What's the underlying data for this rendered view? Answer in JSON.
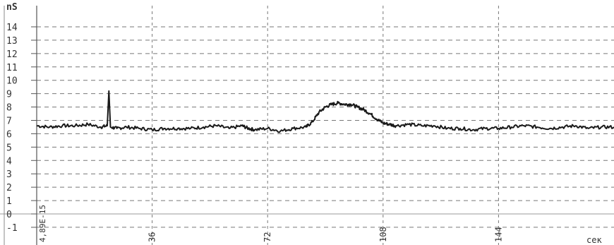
{
  "chart_data": {
    "type": "line",
    "title": "",
    "xlabel": "",
    "ylabel": "",
    "y_unit_label": "nS",
    "x_unit_label": "сек",
    "annotation": "4,89E-15",
    "xlim": [
      0,
      180
    ],
    "ylim": [
      -2,
      15
    ],
    "y_ticks": [
      "-1",
      "0",
      "1",
      "2",
      "3",
      "4",
      "5",
      "6",
      "7",
      "8",
      "9",
      "10",
      "11",
      "12",
      "13",
      "14"
    ],
    "x_ticks": [
      "36",
      "72",
      "108",
      "144"
    ],
    "x_tick_values": [
      36,
      72,
      108,
      144
    ],
    "grid": true,
    "series": [
      {
        "values_x": [
          0,
          4,
          8,
          12,
          16,
          20,
          22,
          22.5,
          23,
          25,
          28,
          32,
          36,
          40,
          44,
          48,
          52,
          56,
          60,
          64,
          66,
          68,
          72,
          76,
          80,
          84,
          86,
          88,
          90,
          92,
          94,
          96,
          98,
          100,
          102,
          104,
          106,
          108,
          110,
          112,
          116,
          120,
          124,
          128,
          132,
          136,
          140,
          144,
          148,
          152,
          156,
          160,
          164,
          168,
          172,
          176,
          180
        ],
        "values_y": [
          6.6,
          6.5,
          6.6,
          6.6,
          6.7,
          6.5,
          6.6,
          9.2,
          6.5,
          6.4,
          6.5,
          6.4,
          6.3,
          6.4,
          6.4,
          6.4,
          6.5,
          6.6,
          6.4,
          6.6,
          6.4,
          6.3,
          6.4,
          6.2,
          6.4,
          6.5,
          6.9,
          7.6,
          8.0,
          8.2,
          8.3,
          8.2,
          8.2,
          8.0,
          7.8,
          7.5,
          7.1,
          6.8,
          6.7,
          6.6,
          6.7,
          6.6,
          6.6,
          6.4,
          6.4,
          6.3,
          6.4,
          6.4,
          6.5,
          6.6,
          6.5,
          6.4,
          6.5,
          6.6,
          6.4,
          6.5,
          6.5
        ]
      }
    ]
  }
}
